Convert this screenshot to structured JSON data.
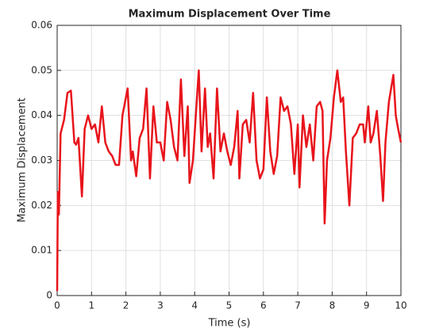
{
  "chart_data": {
    "type": "line",
    "title": "Maximum Displacement Over Time",
    "xlabel": "Time (s)",
    "ylabel": "Maximum Displacement",
    "xlim": [
      0,
      10
    ],
    "ylim": [
      0,
      0.06
    ],
    "xticks": [
      0,
      1,
      2,
      3,
      4,
      5,
      6,
      7,
      8,
      9,
      10
    ],
    "yticks": [
      0,
      0.01,
      0.02,
      0.03,
      0.04,
      0.05,
      0.06
    ],
    "grid": true,
    "series": [
      {
        "name": "Maximum Displacement",
        "color": "#e8141b",
        "x": [
          0,
          0.02,
          0.05,
          0.1,
          0.2,
          0.3,
          0.4,
          0.5,
          0.55,
          0.62,
          0.72,
          0.8,
          0.9,
          1.0,
          1.1,
          1.2,
          1.3,
          1.4,
          1.5,
          1.6,
          1.7,
          1.8,
          1.9,
          2.0,
          2.05,
          2.15,
          2.2,
          2.3,
          2.4,
          2.5,
          2.6,
          2.7,
          2.8,
          2.9,
          3.0,
          3.1,
          3.2,
          3.3,
          3.4,
          3.5,
          3.6,
          3.7,
          3.8,
          3.85,
          3.95,
          4.05,
          4.12,
          4.2,
          4.3,
          4.38,
          4.45,
          4.55,
          4.65,
          4.75,
          4.85,
          4.95,
          5.05,
          5.15,
          5.25,
          5.3,
          5.4,
          5.5,
          5.6,
          5.7,
          5.8,
          5.9,
          6.0,
          6.1,
          6.2,
          6.3,
          6.4,
          6.5,
          6.6,
          6.7,
          6.8,
          6.9,
          7.0,
          7.05,
          7.15,
          7.25,
          7.35,
          7.45,
          7.55,
          7.65,
          7.72,
          7.78,
          7.85,
          7.95,
          8.05,
          8.15,
          8.25,
          8.32,
          8.4,
          8.5,
          8.6,
          8.7,
          8.8,
          8.9,
          8.95,
          9.05,
          9.12,
          9.2,
          9.3,
          9.4,
          9.48,
          9.55,
          9.65,
          9.78,
          9.85,
          9.92,
          10
        ],
        "values": [
          0.001,
          0.023,
          0.018,
          0.036,
          0.039,
          0.045,
          0.0455,
          0.034,
          0.0335,
          0.035,
          0.022,
          0.037,
          0.04,
          0.037,
          0.038,
          0.034,
          0.042,
          0.034,
          0.032,
          0.031,
          0.029,
          0.029,
          0.04,
          0.044,
          0.046,
          0.03,
          0.032,
          0.0265,
          0.035,
          0.037,
          0.046,
          0.026,
          0.042,
          0.034,
          0.034,
          0.03,
          0.043,
          0.039,
          0.033,
          0.03,
          0.048,
          0.031,
          0.042,
          0.025,
          0.03,
          0.042,
          0.05,
          0.032,
          0.046,
          0.033,
          0.036,
          0.026,
          0.046,
          0.032,
          0.036,
          0.032,
          0.029,
          0.033,
          0.041,
          0.026,
          0.038,
          0.039,
          0.034,
          0.045,
          0.03,
          0.026,
          0.028,
          0.044,
          0.032,
          0.027,
          0.031,
          0.044,
          0.041,
          0.042,
          0.038,
          0.027,
          0.038,
          0.024,
          0.04,
          0.033,
          0.038,
          0.03,
          0.042,
          0.043,
          0.041,
          0.016,
          0.03,
          0.035,
          0.044,
          0.05,
          0.043,
          0.044,
          0.032,
          0.02,
          0.035,
          0.036,
          0.038,
          0.038,
          0.034,
          0.042,
          0.034,
          0.036,
          0.041,
          0.031,
          0.021,
          0.034,
          0.043,
          0.049,
          0.04,
          0.037,
          0.034
        ]
      }
    ]
  }
}
